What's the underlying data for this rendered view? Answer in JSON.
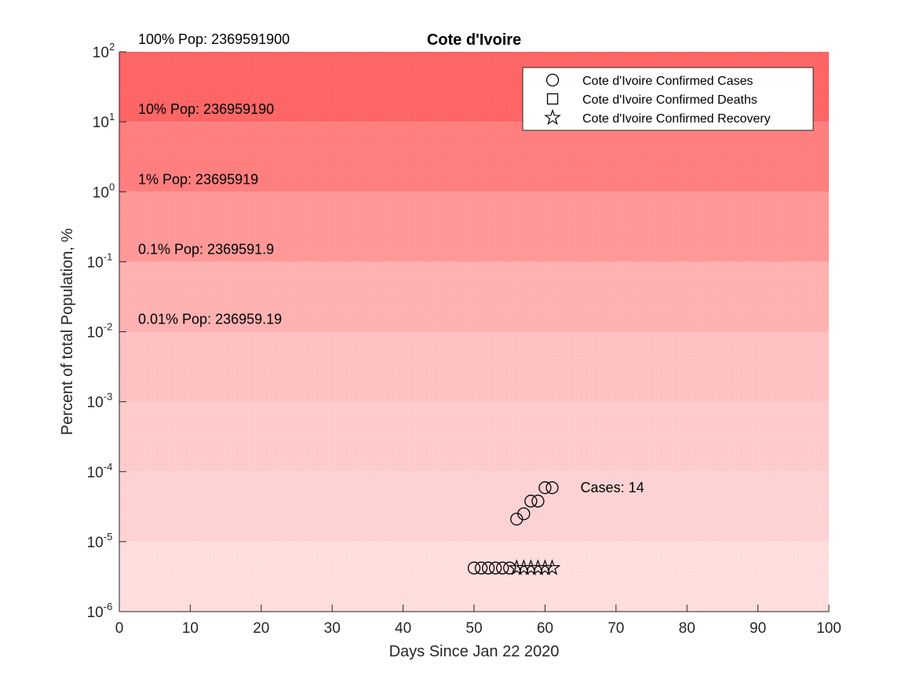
{
  "chart_data": {
    "type": "scatter",
    "title": "Cote d'Ivoire",
    "xlabel": "Days Since Jan 22 2020",
    "ylabel": "Percent of total Population, %",
    "xlim": [
      0,
      100
    ],
    "ylim": [
      1e-06,
      100
    ],
    "yscale": "log",
    "x_ticks": [
      0,
      10,
      20,
      30,
      40,
      50,
      60,
      70,
      80,
      90,
      100
    ],
    "y_ticks": [
      {
        "base": "10",
        "exp": "-6",
        "value": 1e-06
      },
      {
        "base": "10",
        "exp": "-5",
        "value": 1e-05
      },
      {
        "base": "10",
        "exp": "-4",
        "value": 0.0001
      },
      {
        "base": "10",
        "exp": "-3",
        "value": 0.001
      },
      {
        "base": "10",
        "exp": "-2",
        "value": 0.01
      },
      {
        "base": "10",
        "exp": "-1",
        "value": 0.1
      },
      {
        "base": "10",
        "exp": "0",
        "value": 1
      },
      {
        "base": "10",
        "exp": "1",
        "value": 10
      },
      {
        "base": "10",
        "exp": "2",
        "value": 100
      }
    ],
    "population_bands": [
      {
        "label": "100% Pop: 2369591900",
        "level": 100,
        "color": "#ff6666"
      },
      {
        "label": "10% Pop: 236959190",
        "level": 10,
        "color": "#ff7f7f"
      },
      {
        "label": "1% Pop: 23695919",
        "level": 1,
        "color": "#ff9999"
      },
      {
        "label": "0.1% Pop: 2369591.9",
        "level": 0.1,
        "color": "#ffb2b2"
      },
      {
        "label": "0.01% Pop: 236959.19",
        "level": 0.01,
        "color": "#ffc2c2"
      },
      {
        "label": "",
        "level": 0.001,
        "color": "#ffcccc"
      },
      {
        "label": "",
        "level": 0.0001,
        "color": "#ffd3d3"
      },
      {
        "label": "",
        "level": 1e-05,
        "color": "#ffdede"
      }
    ],
    "series": [
      {
        "name": "Cote d'Ivoire Confirmed Cases",
        "marker": "circle",
        "x": [
          50,
          51,
          52,
          53,
          54,
          55,
          56,
          57,
          58,
          59,
          60,
          61
        ],
        "y": [
          4.2e-06,
          4.2e-06,
          4.2e-06,
          4.2e-06,
          4.2e-06,
          4.2e-06,
          2.1e-05,
          2.5e-05,
          3.8e-05,
          3.8e-05,
          5.9e-05,
          5.9e-05
        ]
      },
      {
        "name": "Cote d'Ivoire Confirmed Deaths",
        "marker": "square",
        "x": [],
        "y": []
      },
      {
        "name": "Cote d'Ivoire Confirmed Recovery",
        "marker": "star",
        "x": [
          56,
          57,
          58,
          59,
          60,
          61
        ],
        "y": [
          4.2e-06,
          4.2e-06,
          4.2e-06,
          4.2e-06,
          4.2e-06,
          4.2e-06
        ]
      }
    ],
    "annotation": {
      "text": "Cases: 14",
      "x": 64,
      "y": 5.9e-05
    },
    "legend_position": "top-right",
    "grid": false
  }
}
